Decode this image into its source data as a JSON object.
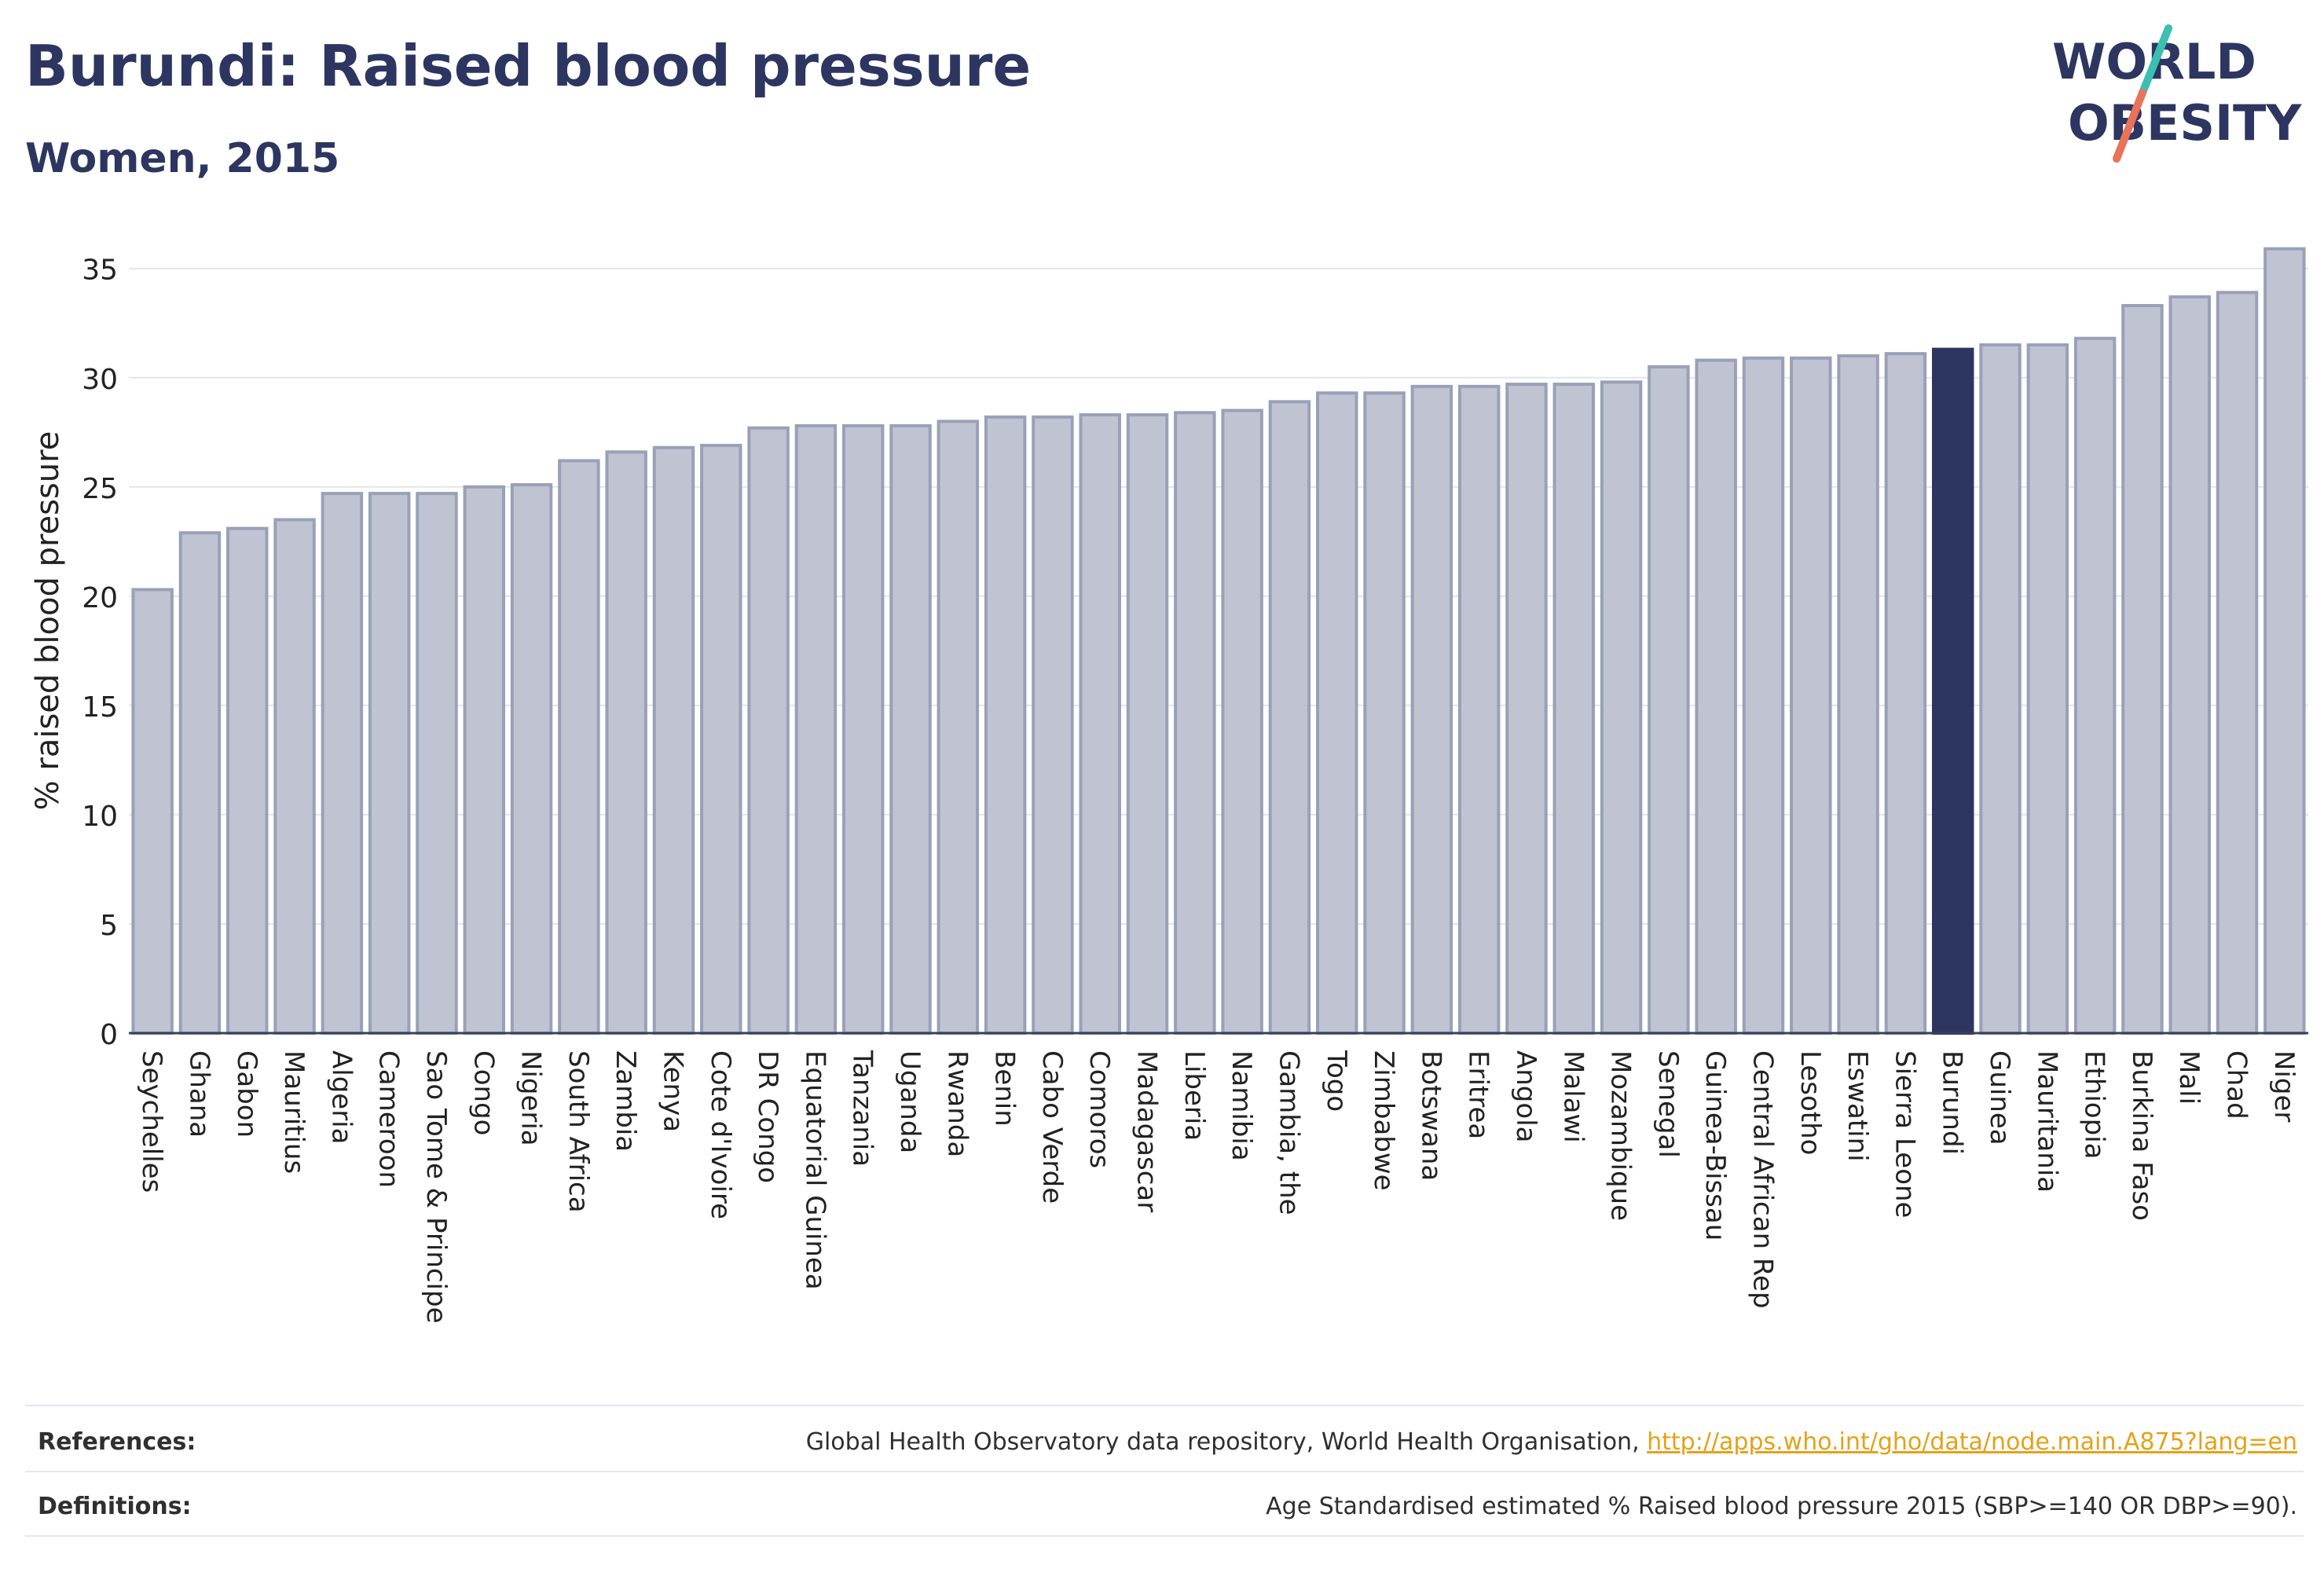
{
  "header": {
    "title": "Burundi: Raised blood pressure",
    "subtitle": "Women, 2015"
  },
  "logo": {
    "line1": "WORLD",
    "line2": "OBESITY",
    "brand_color": "#2d3561",
    "slash_colors": [
      "#3bbfb0",
      "#e8735a"
    ]
  },
  "colors": {
    "bar": "#c0c4d2",
    "bar_border": "#9aa0b8",
    "highlight_bar": "#2d3561",
    "axis_text": "#222222",
    "gridline": "#e3e5ea",
    "link": "#e4a21a"
  },
  "chart_data": {
    "type": "bar",
    "ylabel": "% raised blood pressure",
    "ylim": [
      0,
      36.5
    ],
    "yticks": [
      0,
      5,
      10,
      15,
      20,
      25,
      30,
      35
    ],
    "grid": true,
    "highlight": "Burundi",
    "categories": [
      "Seychelles",
      "Ghana",
      "Gabon",
      "Mauritius",
      "Algeria",
      "Cameroon",
      "Sao Tome & Principe",
      "Congo",
      "Nigeria",
      "South Africa",
      "Zambia",
      "Kenya",
      "Cote d'Ivoire",
      "DR Congo",
      "Equatorial Guinea",
      "Tanzania",
      "Uganda",
      "Rwanda",
      "Benin",
      "Cabo Verde",
      "Comoros",
      "Madagascar",
      "Liberia",
      "Namibia",
      "Gambia, the",
      "Togo",
      "Zimbabwe",
      "Botswana",
      "Eritrea",
      "Angola",
      "Malawi",
      "Mozambique",
      "Senegal",
      "Guinea-Bissau",
      "Central African Rep",
      "Lesotho",
      "Eswatini",
      "Sierra Leone",
      "Burundi",
      "Guinea",
      "Mauritania",
      "Ethiopia",
      "Burkina Faso",
      "Mali",
      "Chad",
      "Niger"
    ],
    "values": [
      20.3,
      22.9,
      23.1,
      23.5,
      24.7,
      24.7,
      24.7,
      25.0,
      25.1,
      26.2,
      26.6,
      26.8,
      26.9,
      27.7,
      27.8,
      27.8,
      27.8,
      28.0,
      28.2,
      28.2,
      28.3,
      28.3,
      28.4,
      28.5,
      28.9,
      29.3,
      29.3,
      29.6,
      29.6,
      29.7,
      29.7,
      29.8,
      30.5,
      30.8,
      30.9,
      30.9,
      31.0,
      31.1,
      31.3,
      31.5,
      31.5,
      31.8,
      33.3,
      33.7,
      33.9,
      35.9
    ]
  },
  "footer": {
    "references_label": "References:",
    "references_text": "Global Health Observatory data repository, World Health Organisation, ",
    "references_link": "http://apps.who.int/gho/data/node.main.A875?lang=en",
    "definitions_label": "Definitions:",
    "definitions_text": "Age Standardised estimated % Raised blood pressure 2015 (SBP>=140 OR DBP>=90)."
  }
}
